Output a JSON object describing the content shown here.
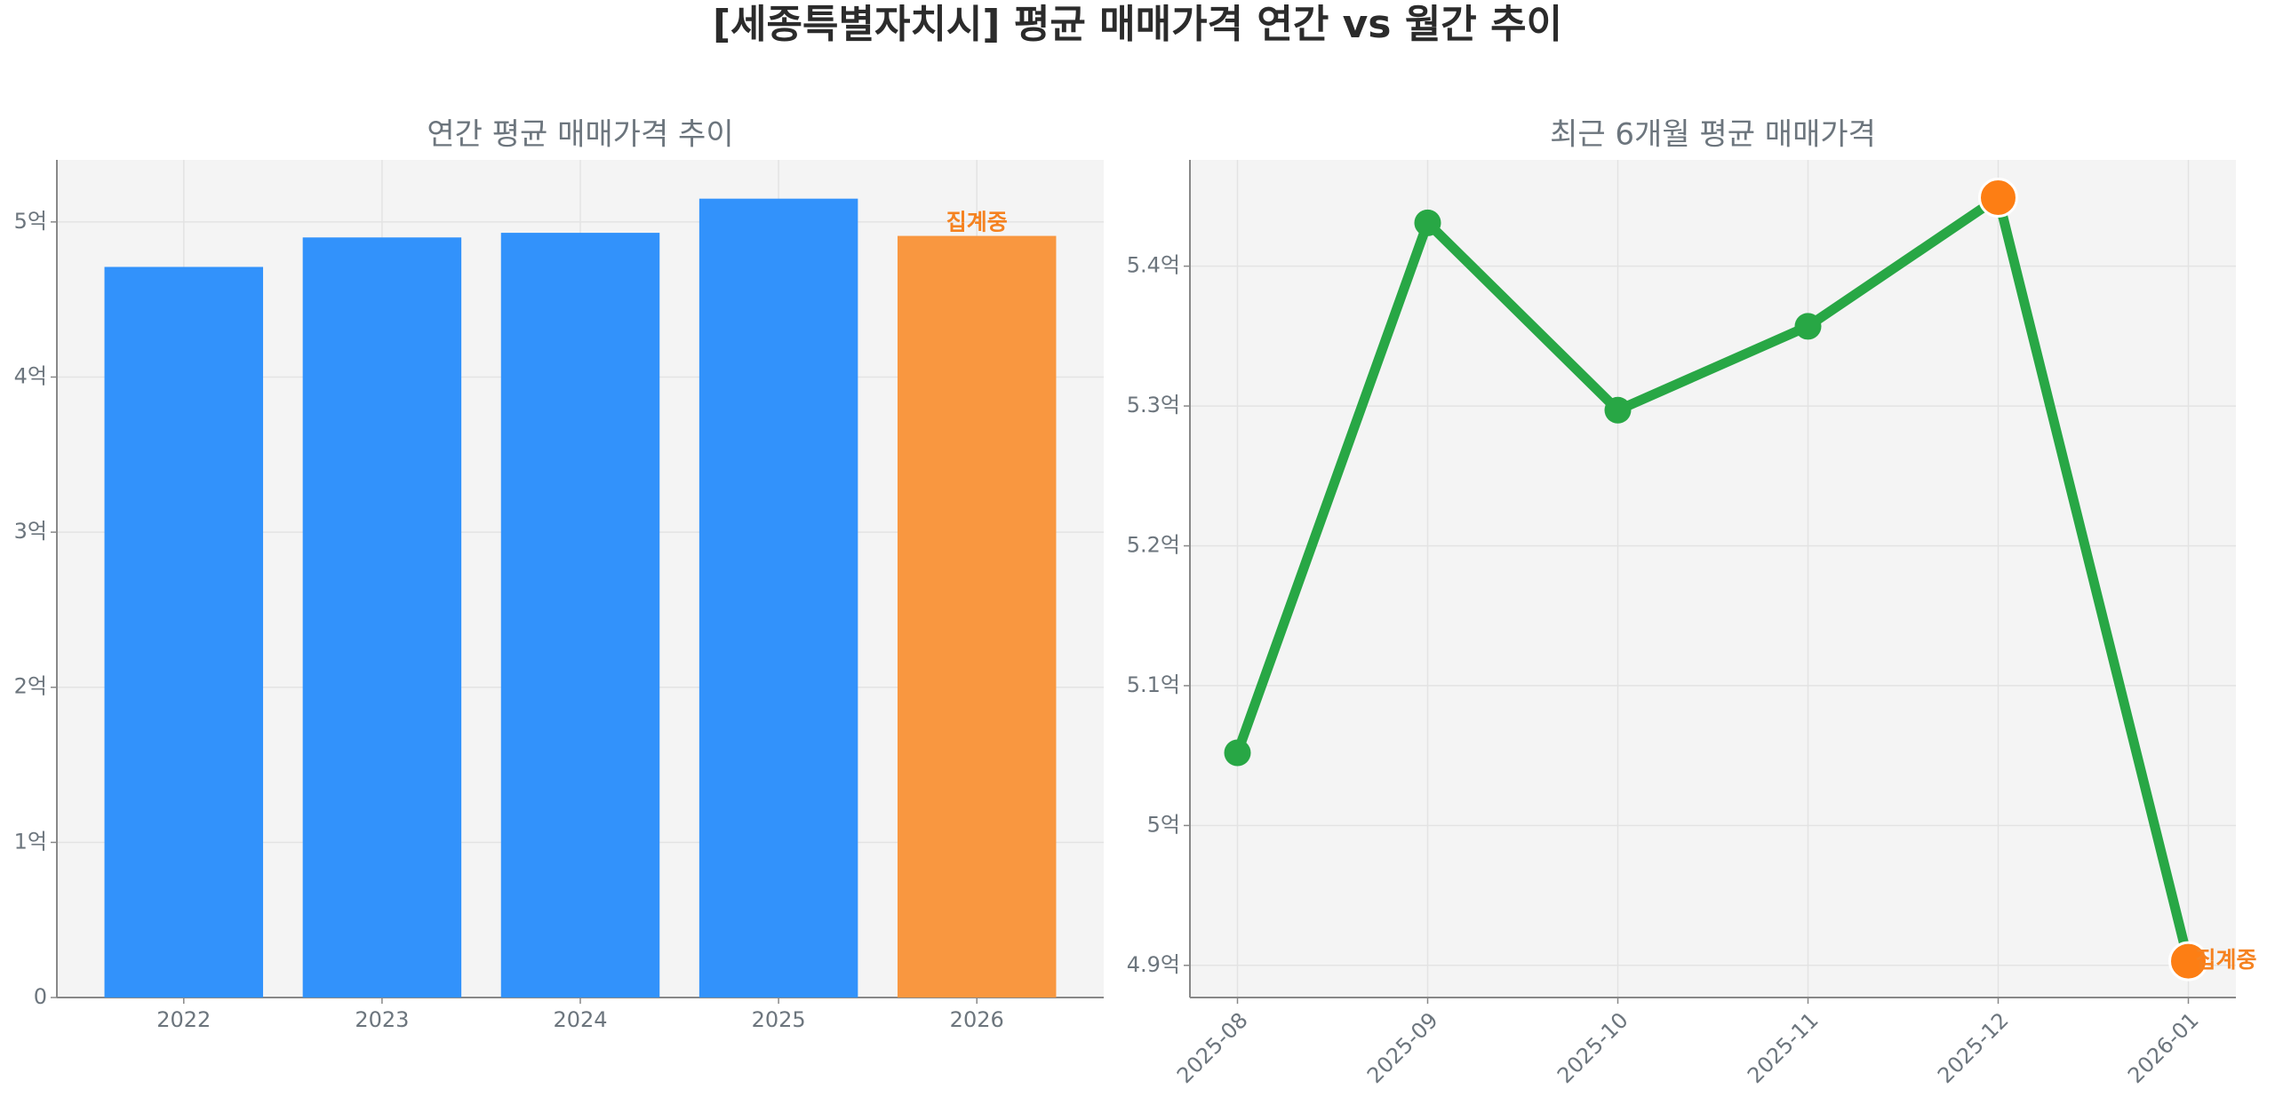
{
  "title": "[세종특별자치시] 평균 매매가격 연간 vs 월간 추이",
  "chart_data": [
    {
      "type": "bar",
      "title": "연간 평균 매매가격 추이",
      "categories": [
        "2022",
        "2023",
        "2024",
        "2025",
        "2026"
      ],
      "values": [
        4.71,
        4.9,
        4.93,
        5.15,
        4.91
      ],
      "colors": [
        "#3292fb",
        "#3292fb",
        "#3292fb",
        "#3292fb",
        "#f99740"
      ],
      "ylim": [
        0,
        5.4
      ],
      "yticks": [
        0,
        {
          "value": 1,
          "label": "1억"
        },
        {
          "value": 2,
          "label": "2억"
        },
        {
          "value": 3,
          "label": "3억"
        },
        {
          "value": 4,
          "label": "4억"
        },
        {
          "value": 5,
          "label": "5억"
        }
      ],
      "annotations": [
        {
          "x": "2026",
          "text": "집계중",
          "color": "#f58220"
        }
      ],
      "grid": true
    },
    {
      "type": "line",
      "title": "최근 6개월 평균 매매가격",
      "categories": [
        "2025-08",
        "2025-09",
        "2025-10",
        "2025-11",
        "2025-12",
        "2026-01"
      ],
      "values": [
        5.052,
        5.431,
        5.297,
        5.357,
        5.449,
        4.903
      ],
      "color": "#28a745",
      "point_colors": [
        "#28a745",
        "#28a745",
        "#28a745",
        "#28a745",
        "#fd7e14",
        "#fd7e14"
      ],
      "ylim": [
        4.877,
        5.476
      ],
      "yticks": [
        {
          "value": 4.9,
          "label": "4.9억"
        },
        {
          "value": 5.0,
          "label": "5억"
        },
        {
          "value": 5.1,
          "label": "5.1억"
        },
        {
          "value": 5.2,
          "label": "5.2억"
        },
        {
          "value": 5.3,
          "label": "5.3억"
        },
        {
          "value": 5.4,
          "label": "5.4억"
        }
      ],
      "annotations": [
        {
          "x": "2026-01",
          "text": "집계중",
          "color": "#f58220"
        }
      ],
      "grid": true
    }
  ]
}
